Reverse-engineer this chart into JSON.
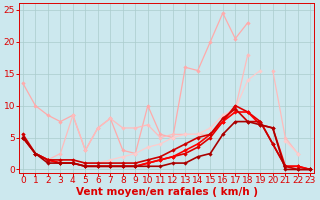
{
  "xlabel": "Vent moyen/en rafales ( km/h )",
  "bg_color": "#cce8ee",
  "grid_color": "#aacccc",
  "x_ticks": [
    0,
    1,
    2,
    3,
    4,
    5,
    6,
    7,
    8,
    9,
    10,
    11,
    12,
    13,
    14,
    15,
    16,
    17,
    18,
    19,
    20,
    21,
    22,
    23
  ],
  "yticks": [
    0,
    5,
    10,
    15,
    20,
    25
  ],
  "ylim": [
    -0.5,
    26
  ],
  "xlim": [
    -0.3,
    23.3
  ],
  "tick_fontsize": 6.5,
  "xlabel_fontsize": 7.5,
  "tick_color": "#dd0000",
  "xlabel_color": "#dd0000",
  "lines": [
    {
      "x": [
        0,
        1,
        2,
        3,
        4,
        5,
        6,
        7,
        8,
        9,
        10,
        11,
        12,
        13,
        14,
        15,
        16,
        17,
        18,
        19,
        20,
        21,
        22
      ],
      "y": [
        13.5,
        10.0,
        8.5,
        7.5,
        8.5,
        3.0,
        6.5,
        8.0,
        3.0,
        2.5,
        10.0,
        5.5,
        5.0,
        16.0,
        15.5,
        20.0,
        24.5,
        20.5,
        23.0,
        null,
        null,
        null,
        null
      ],
      "color": "#ffaaaa",
      "lw": 0.9,
      "markersize": 2.2
    },
    {
      "x": [
        0,
        1,
        2,
        3,
        4,
        5,
        6,
        7,
        8,
        9,
        10,
        11,
        12,
        13,
        14,
        15,
        16,
        17,
        18,
        19,
        20,
        21,
        22
      ],
      "y": [
        5.5,
        2.5,
        1.5,
        2.5,
        8.5,
        3.0,
        6.5,
        8.0,
        6.5,
        6.5,
        7.0,
        5.0,
        5.5,
        5.5,
        5.5,
        5.5,
        7.5,
        9.5,
        18.0,
        null,
        15.5,
        5.0,
        2.5
      ],
      "color": "#ffbbbb",
      "lw": 0.9,
      "markersize": 2.2
    },
    {
      "x": [
        0,
        1,
        2,
        3,
        4,
        5,
        6,
        7,
        8,
        9,
        10,
        11,
        12,
        13,
        14,
        15,
        16,
        17,
        18,
        19,
        20,
        21,
        22
      ],
      "y": [
        5.5,
        2.5,
        1.5,
        1.5,
        1.5,
        1.0,
        1.0,
        1.5,
        2.0,
        2.5,
        3.5,
        4.0,
        5.0,
        5.5,
        5.5,
        6.5,
        8.5,
        9.5,
        14.0,
        15.5,
        null,
        4.5,
        2.5
      ],
      "color": "#ffcccc",
      "lw": 0.9,
      "markersize": 2.2
    },
    {
      "x": [
        0,
        1,
        2,
        3,
        4,
        5,
        6,
        7,
        8,
        9,
        10,
        11,
        12,
        13,
        14,
        15,
        16,
        17,
        18,
        19,
        20,
        21,
        22,
        23
      ],
      "y": [
        5.0,
        2.5,
        1.5,
        1.0,
        1.0,
        0.5,
        0.5,
        0.5,
        0.5,
        0.5,
        1.0,
        1.5,
        2.0,
        2.5,
        3.5,
        5.0,
        7.5,
        10.0,
        9.0,
        7.5,
        4.0,
        0.5,
        0.5,
        0.0
      ],
      "color": "#dd0000",
      "lw": 1.2,
      "markersize": 2.2
    },
    {
      "x": [
        0,
        1,
        2,
        3,
        4,
        5,
        6,
        7,
        8,
        9,
        10,
        11,
        12,
        13,
        14,
        15,
        16,
        17,
        18,
        19,
        20,
        21,
        22,
        23
      ],
      "y": [
        5.0,
        2.5,
        1.5,
        1.0,
        1.0,
        0.5,
        0.5,
        0.5,
        0.5,
        0.5,
        1.0,
        1.5,
        2.0,
        3.0,
        4.0,
        5.5,
        7.5,
        9.0,
        9.0,
        7.0,
        6.5,
        0.5,
        0.5,
        0.0
      ],
      "color": "#ff0000",
      "lw": 1.2,
      "markersize": 2.2
    },
    {
      "x": [
        0,
        1,
        2,
        3,
        4,
        5,
        6,
        7,
        8,
        9,
        10,
        11,
        12,
        13,
        14,
        15,
        16,
        17,
        18,
        19,
        20,
        21,
        22,
        23
      ],
      "y": [
        5.5,
        2.5,
        1.5,
        1.5,
        1.5,
        1.0,
        1.0,
        1.0,
        1.0,
        1.0,
        1.5,
        2.0,
        3.0,
        4.0,
        5.0,
        5.5,
        8.0,
        9.5,
        7.5,
        7.5,
        4.0,
        0.5,
        0.0,
        0.0
      ],
      "color": "#cc0000",
      "lw": 1.2,
      "markersize": 2.2
    },
    {
      "x": [
        0,
        1,
        2,
        3,
        4,
        5,
        6,
        7,
        8,
        9,
        10,
        11,
        12,
        13,
        14,
        15,
        16,
        17,
        18,
        19,
        20,
        21,
        22,
        23
      ],
      "y": [
        5.0,
        2.5,
        1.0,
        1.0,
        1.0,
        0.5,
        0.5,
        0.5,
        0.5,
        0.5,
        0.5,
        0.5,
        1.0,
        1.0,
        2.0,
        2.5,
        5.5,
        7.5,
        7.5,
        7.0,
        6.5,
        0.0,
        0.0,
        0.0
      ],
      "color": "#aa0000",
      "lw": 1.2,
      "markersize": 2.2
    }
  ]
}
